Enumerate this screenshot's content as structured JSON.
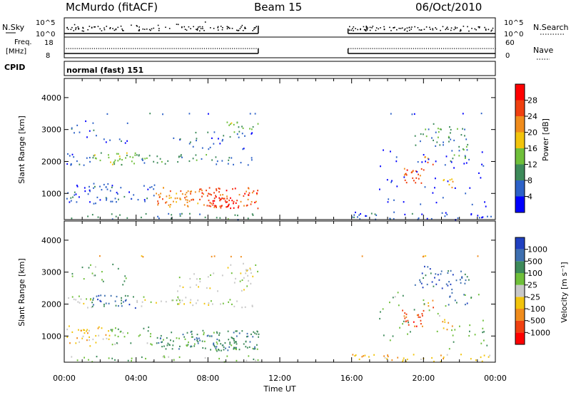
{
  "header": {
    "station": "McMurdo (fitACF)",
    "beam": "Beam 15",
    "date": "06/Oct/2010"
  },
  "top_panels": {
    "nsky_label": "N.Sky",
    "nsky_ticks": [
      "10^5",
      "10^0"
    ],
    "nsearch_label": "N.Search",
    "nsearch_ticks": [
      "10^5",
      "10^0"
    ],
    "freq_label_1": "Freq.",
    "freq_label_2": "[MHz]",
    "freq_ticks": [
      "18",
      "8"
    ],
    "nave_label": "Nave",
    "nave_ticks": [
      "60",
      "0"
    ],
    "cpid_label": "CPID",
    "cpid_value": "normal (fast) 151"
  },
  "chart_data": [
    {
      "type": "heatmap",
      "panel": "power",
      "ylabel": "Slant Range [km]",
      "xlabel": "Time UT",
      "x_ticks": [
        "00:00",
        "04:00",
        "08:00",
        "12:00",
        "16:00",
        "20:00",
        "00:00"
      ],
      "x_range_hours": [
        0,
        24
      ],
      "y_ticks": [
        "1000",
        "2000",
        "3000",
        "4000"
      ],
      "ylim": [
        180,
        4600
      ],
      "data_gap_hours": [
        10.8,
        15.8
      ],
      "colorbar_label": "Power [dB]",
      "colorbar_ticks": [
        "4",
        "8",
        "12",
        "16",
        "20",
        "24",
        "28"
      ],
      "colorbar_range": [
        0,
        32
      ],
      "colors": [
        "#0000ff",
        "#2d62c8",
        "#3d8a5a",
        "#6fbf3a",
        "#f2c40c",
        "#f08c1c",
        "#f04010",
        "#ff0000"
      ]
    },
    {
      "type": "heatmap",
      "panel": "velocity",
      "ylabel": "Slant Range [km]",
      "xlabel": "Time UT",
      "x_ticks": [
        "00:00",
        "04:00",
        "08:00",
        "12:00",
        "16:00",
        "20:00",
        "00:00"
      ],
      "x_range_hours": [
        0,
        24
      ],
      "y_ticks": [
        "1000",
        "2000",
        "3000",
        "4000"
      ],
      "ylim": [
        180,
        4600
      ],
      "data_gap_hours": [
        10.8,
        15.8
      ],
      "colorbar_label": "Velocity [m s⁻¹]",
      "colorbar_ticks": [
        "1000",
        "500",
        "100",
        "25",
        "-25",
        "-100",
        "-500",
        "-1000"
      ],
      "colors": [
        "#2040c0",
        "#3d6fb0",
        "#3d8a5a",
        "#6fbf3a",
        "#c8c8c8",
        "#f2c40c",
        "#f08c1c",
        "#f04010",
        "#ff0000"
      ]
    }
  ],
  "x_axis": {
    "label": "Time UT",
    "ticks": [
      "00:00",
      "04:00",
      "08:00",
      "12:00",
      "16:00",
      "20:00",
      "00:00"
    ]
  }
}
